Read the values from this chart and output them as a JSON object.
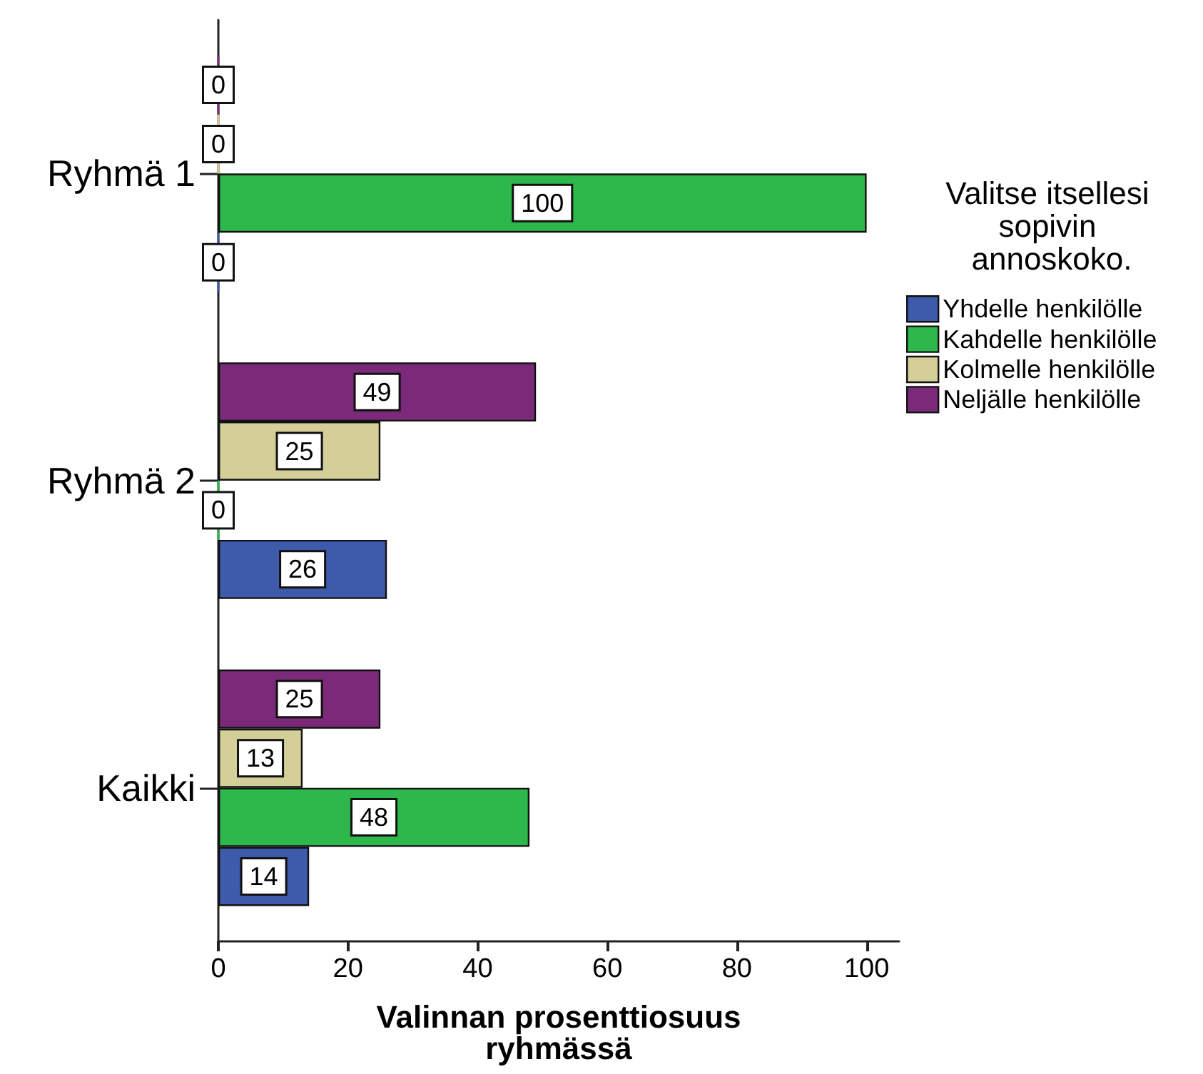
{
  "chart_data": {
    "type": "bar",
    "orientation": "horizontal",
    "xlabel": "Valinnan prosenttiosuus ryhmässä",
    "legend_title": "Valitse itsellesi sopivin annoskoko.",
    "legend": "right",
    "data_labels": true,
    "categories": [
      "Ryhmä 1",
      "Ryhmä 2",
      "Kaikki"
    ],
    "series": [
      {
        "name": "Yhdelle henkilölle",
        "color": "#3d5aab",
        "values": [
          0,
          26,
          14
        ]
      },
      {
        "name": "Kahdelle henkilölle",
        "color": "#2eb84b",
        "values": [
          100,
          0,
          48
        ]
      },
      {
        "name": "Kolmelle henkilölle",
        "color": "#d4cf98",
        "values": [
          0,
          25,
          13
        ]
      },
      {
        "name": "Neljälle henkilölle",
        "color": "#7a2a78",
        "values": [
          0,
          49,
          25
        ]
      }
    ],
    "xlim": [
      0,
      105
    ],
    "xticks": [
      0,
      20,
      40,
      60,
      80,
      100
    ]
  }
}
